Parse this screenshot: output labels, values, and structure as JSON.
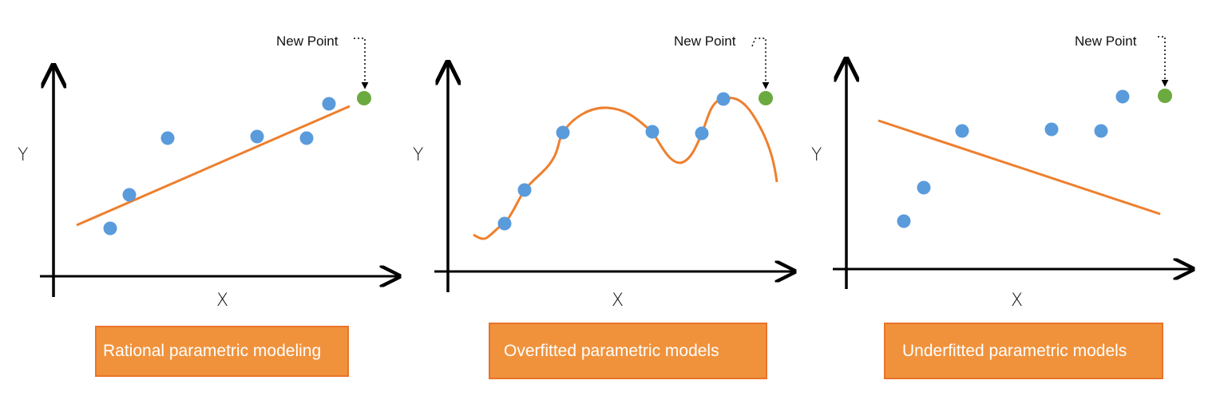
{
  "colors": {
    "point": "#5a9bdc",
    "new_point": "#6aaa3e",
    "curve": "#ee7f2d",
    "axis": "#000000",
    "caption_bg": "#f0923c",
    "caption_border": "#e9742a"
  },
  "panels": [
    {
      "id": "rational",
      "caption": "Rational parametric modeling",
      "new_point_label": "New Point",
      "x_label": "X",
      "y_label": "Y",
      "fit": "good"
    },
    {
      "id": "overfitted",
      "caption": "Overfitted parametric models",
      "new_point_label": "New Point",
      "x_label": "X",
      "y_label": "Y",
      "fit": "overfit"
    },
    {
      "id": "underfitted",
      "caption": "Underfitted parametric models",
      "new_point_label": "New Point",
      "x_label": "X",
      "y_label": "Y",
      "fit": "underfit"
    }
  ]
}
